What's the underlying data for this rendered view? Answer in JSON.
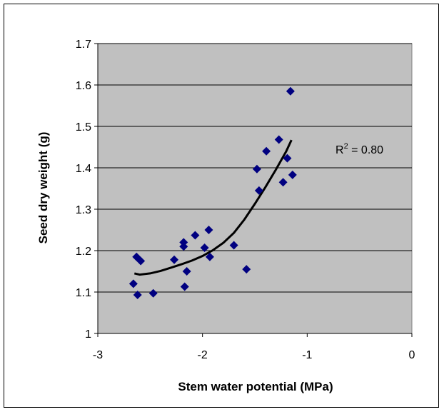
{
  "chart_data": {
    "type": "scatter",
    "xlabel": "Stem water potential (MPa)",
    "ylabel": "Seed dry weight (g)",
    "xlim": [
      -3,
      0
    ],
    "ylim": [
      1,
      1.7
    ],
    "x_ticks": [
      "-3",
      "-2",
      "-1",
      "0"
    ],
    "y_ticks": [
      "1",
      "1.1",
      "1.2",
      "1.3",
      "1.4",
      "1.5",
      "1.6",
      "1.7"
    ],
    "grid": "horizontal",
    "plot_background": "#c0c0c0",
    "marker_color": "#000080",
    "line_color": "#000000",
    "annotation": {
      "prefix": "R",
      "superscript": "2",
      "suffix": " = 0.80"
    },
    "series": [
      {
        "type": "scatter",
        "points": [
          [
            -2.66,
            1.12
          ],
          [
            -2.63,
            1.185
          ],
          [
            -2.62,
            1.093
          ],
          [
            -2.59,
            1.175
          ],
          [
            -2.47,
            1.097
          ],
          [
            -2.27,
            1.178
          ],
          [
            -2.18,
            1.21
          ],
          [
            -2.18,
            1.22
          ],
          [
            -2.17,
            1.113
          ],
          [
            -2.15,
            1.15
          ],
          [
            -2.07,
            1.237
          ],
          [
            -1.98,
            1.207
          ],
          [
            -1.94,
            1.25
          ],
          [
            -1.93,
            1.185
          ],
          [
            -1.7,
            1.213
          ],
          [
            -1.58,
            1.155
          ],
          [
            -1.48,
            1.397
          ],
          [
            -1.46,
            1.345
          ],
          [
            -1.39,
            1.44
          ],
          [
            -1.27,
            1.468
          ],
          [
            -1.23,
            1.365
          ],
          [
            -1.19,
            1.423
          ],
          [
            -1.16,
            1.585
          ],
          [
            -1.14,
            1.383
          ]
        ]
      },
      {
        "type": "trendline",
        "points": [
          [
            -2.65,
            1.145
          ],
          [
            -2.6,
            1.142
          ],
          [
            -2.5,
            1.145
          ],
          [
            -2.4,
            1.151
          ],
          [
            -2.3,
            1.159
          ],
          [
            -2.2,
            1.167
          ],
          [
            -2.1,
            1.176
          ],
          [
            -2.0,
            1.187
          ],
          [
            -1.9,
            1.201
          ],
          [
            -1.8,
            1.219
          ],
          [
            -1.7,
            1.243
          ],
          [
            -1.6,
            1.275
          ],
          [
            -1.5,
            1.313
          ],
          [
            -1.4,
            1.353
          ],
          [
            -1.3,
            1.395
          ],
          [
            -1.2,
            1.44
          ],
          [
            -1.15,
            1.467
          ]
        ]
      }
    ]
  }
}
